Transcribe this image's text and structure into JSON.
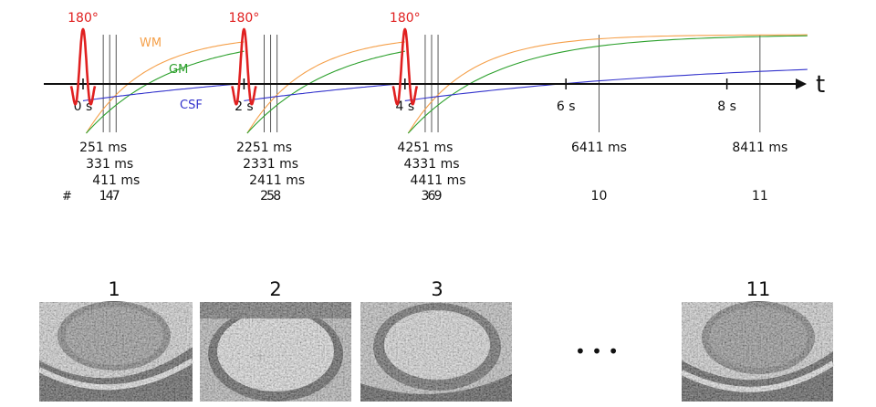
{
  "timeline": {
    "axis_label": "t",
    "pulse_label": "180°",
    "pulse_times": [
      0,
      2,
      4
    ],
    "tick_labels": [
      {
        "t": 0,
        "label": "0 s"
      },
      {
        "t": 2,
        "label": "2 s"
      },
      {
        "t": 4,
        "label": "4 s"
      },
      {
        "t": 6,
        "label": "6 s"
      },
      {
        "t": 8,
        "label": "8 s"
      }
    ],
    "curve_labels": {
      "wm": "WM",
      "gm": "GM",
      "csf": "CSF"
    },
    "colors": {
      "wm": "#f5a04a",
      "gm": "#2ca02c",
      "csf": "#3333cc",
      "pulse": "#e02020",
      "axis": "#111111"
    },
    "readouts": [
      {
        "time_ms": 251,
        "label": "251 ms",
        "index": "1",
        "row": 0
      },
      {
        "time_ms": 331,
        "label": "331 ms",
        "index": "4",
        "row": 1
      },
      {
        "time_ms": 411,
        "label": "411 ms",
        "index": "7",
        "row": 2
      },
      {
        "time_ms": 2251,
        "label": "2251 ms",
        "index": "2",
        "row": 0
      },
      {
        "time_ms": 2331,
        "label": "2331 ms",
        "index": "5",
        "row": 1
      },
      {
        "time_ms": 2411,
        "label": "2411 ms",
        "index": "8",
        "row": 2
      },
      {
        "time_ms": 4251,
        "label": "4251 ms",
        "index": "3",
        "row": 0
      },
      {
        "time_ms": 4331,
        "label": "4331 ms",
        "index": "6",
        "row": 1
      },
      {
        "time_ms": 4411,
        "label": "4411 ms",
        "index": "9",
        "row": 2
      },
      {
        "time_ms": 6411,
        "label": "6411 ms",
        "index": "10",
        "row": 0
      },
      {
        "time_ms": 8411,
        "label": "8411 ms",
        "index": "11",
        "row": 0
      }
    ],
    "index_header": "#"
  },
  "images": {
    "labels": [
      "1",
      "2",
      "3",
      "11"
    ],
    "ellipsis": "• • •"
  }
}
